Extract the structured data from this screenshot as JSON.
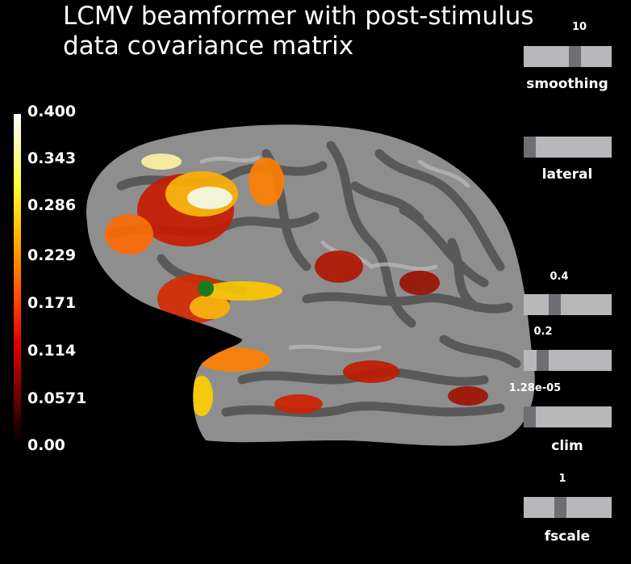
{
  "title": "LCMV beamformer with post-stimulus\ndata covariance matrix",
  "colorbar": {
    "ticks": [
      "0.400",
      "0.343",
      "0.286",
      "0.229",
      "0.171",
      "0.114",
      "0.0571",
      "0.00"
    ]
  },
  "sliders": {
    "smoothing": {
      "label": "smoothing",
      "value": "10",
      "level": 0.6
    },
    "lateral": {
      "label": "lateral",
      "level": 0.0
    },
    "clim_max": {
      "value": "0.4",
      "level": 0.33
    },
    "clim_mid": {
      "value": "0.2",
      "level": 0.17
    },
    "clim_min": {
      "label": "clim",
      "value": "1.28e-05",
      "level": 0.0
    },
    "fscale": {
      "label": "fscale",
      "value": "1",
      "level": 0.4
    }
  },
  "colors": {
    "accent": "#6e6f74",
    "track": "#b8b8bb",
    "marker": "#1f7a1f"
  }
}
